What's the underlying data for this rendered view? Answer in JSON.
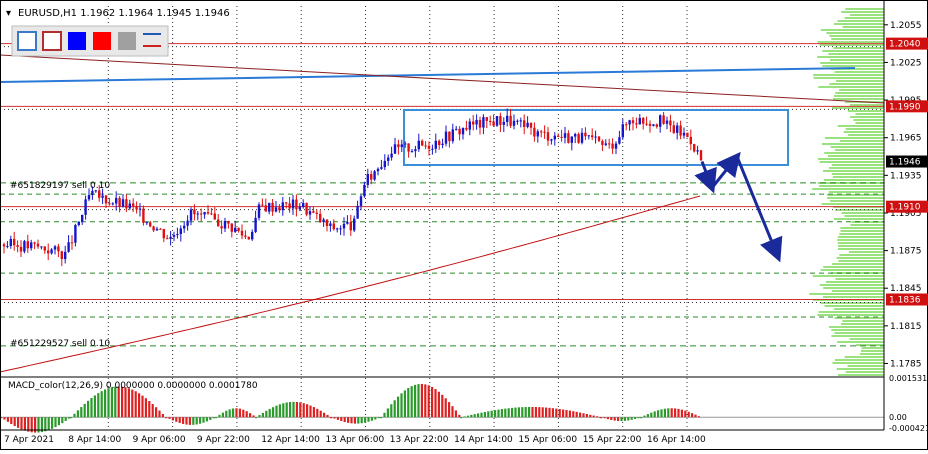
{
  "header": {
    "symbol_line": "EURUSD,H1  1.1962 1.1964 1.1945 1.1946"
  },
  "toolbar": {
    "swatches": [
      {
        "name": "outline-blue",
        "color": "#3a78c8",
        "filled": false
      },
      {
        "name": "outline-red",
        "color": "#b03030",
        "filled": false
      },
      {
        "name": "blue",
        "color": "#0000ff",
        "filled": true
      },
      {
        "name": "red",
        "color": "#ff0000",
        "filled": true
      },
      {
        "name": "gray",
        "color": "#a0a0a0",
        "filled": true
      },
      {
        "name": "line-style",
        "color": "#1e5ab4",
        "filled": false
      }
    ]
  },
  "orders": [
    {
      "label": "#651829197 sell 0.10",
      "price": 1.1929
    },
    {
      "label": "#651229527 sell 0.10",
      "price": 1.1799
    }
  ],
  "price_axis": {
    "ticks": [
      "1.2055",
      "1.2025",
      "1.1995",
      "1.1965",
      "1.1935",
      "1.1905",
      "1.1875",
      "1.1845",
      "1.1815",
      "1.1785"
    ],
    "highlight_levels": [
      {
        "label": "1.2040",
        "value": 1.204,
        "bg": "#d01010"
      },
      {
        "label": "1.1990",
        "value": 1.199,
        "bg": "#d01010"
      },
      {
        "label": "1.1946",
        "value": 1.1946,
        "bg": "#000000"
      },
      {
        "label": "1.1910",
        "value": 1.191,
        "bg": "#d01010"
      },
      {
        "label": "1.1836",
        "value": 1.1836,
        "bg": "#d01010"
      }
    ]
  },
  "time_axis": {
    "labels": [
      "7 Apr 2021",
      "8 Apr 14:00",
      "9 Apr 06:00",
      "9 Apr 22:00",
      "12 Apr 14:00",
      "13 Apr 06:00",
      "13 Apr 22:00",
      "14 Apr 14:00",
      "15 Apr 06:00",
      "15 Apr 22:00",
      "16 Apr 14:00"
    ]
  },
  "macd": {
    "title": "MACD_color(12,26,9) 0.0000000 0.0000000 0.0001780",
    "ticks": [
      "0.001531",
      "0.00",
      "-0.000421"
    ]
  },
  "colors": {
    "bull": "#1515cc",
    "bear": "#e01010",
    "grid": "#303030",
    "sr_line": "#d03030",
    "order_line": "#2a8a2a",
    "box": "#3a8fd8",
    "trend_blue": "#2a7ad8",
    "trend_darkred": "#8b2020",
    "ma": "#c01010",
    "arrow": "#1a2a9a",
    "volume_profile": "#88dd66",
    "macd_up": "#2a9a2a",
    "macd_down": "#dd2020"
  },
  "chart_data": {
    "type": "candlestick",
    "symbol": "EURUSD",
    "timeframe": "H1",
    "ylim": [
      1.1775,
      1.207
    ],
    "last_bar": {
      "open": 1.1962,
      "high": 1.1964,
      "low": 1.1945,
      "close": 1.1946
    },
    "horizontal_levels": [
      1.204,
      1.199,
      1.191,
      1.1836
    ],
    "projection_arrows": [
      {
        "from": 1.1946,
        "to": 1.1925
      },
      {
        "from": 1.1925,
        "to": 1.195
      },
      {
        "from": 1.195,
        "to": 1.187
      }
    ],
    "macd_ylim": [
      -0.000421,
      0.001531
    ]
  }
}
